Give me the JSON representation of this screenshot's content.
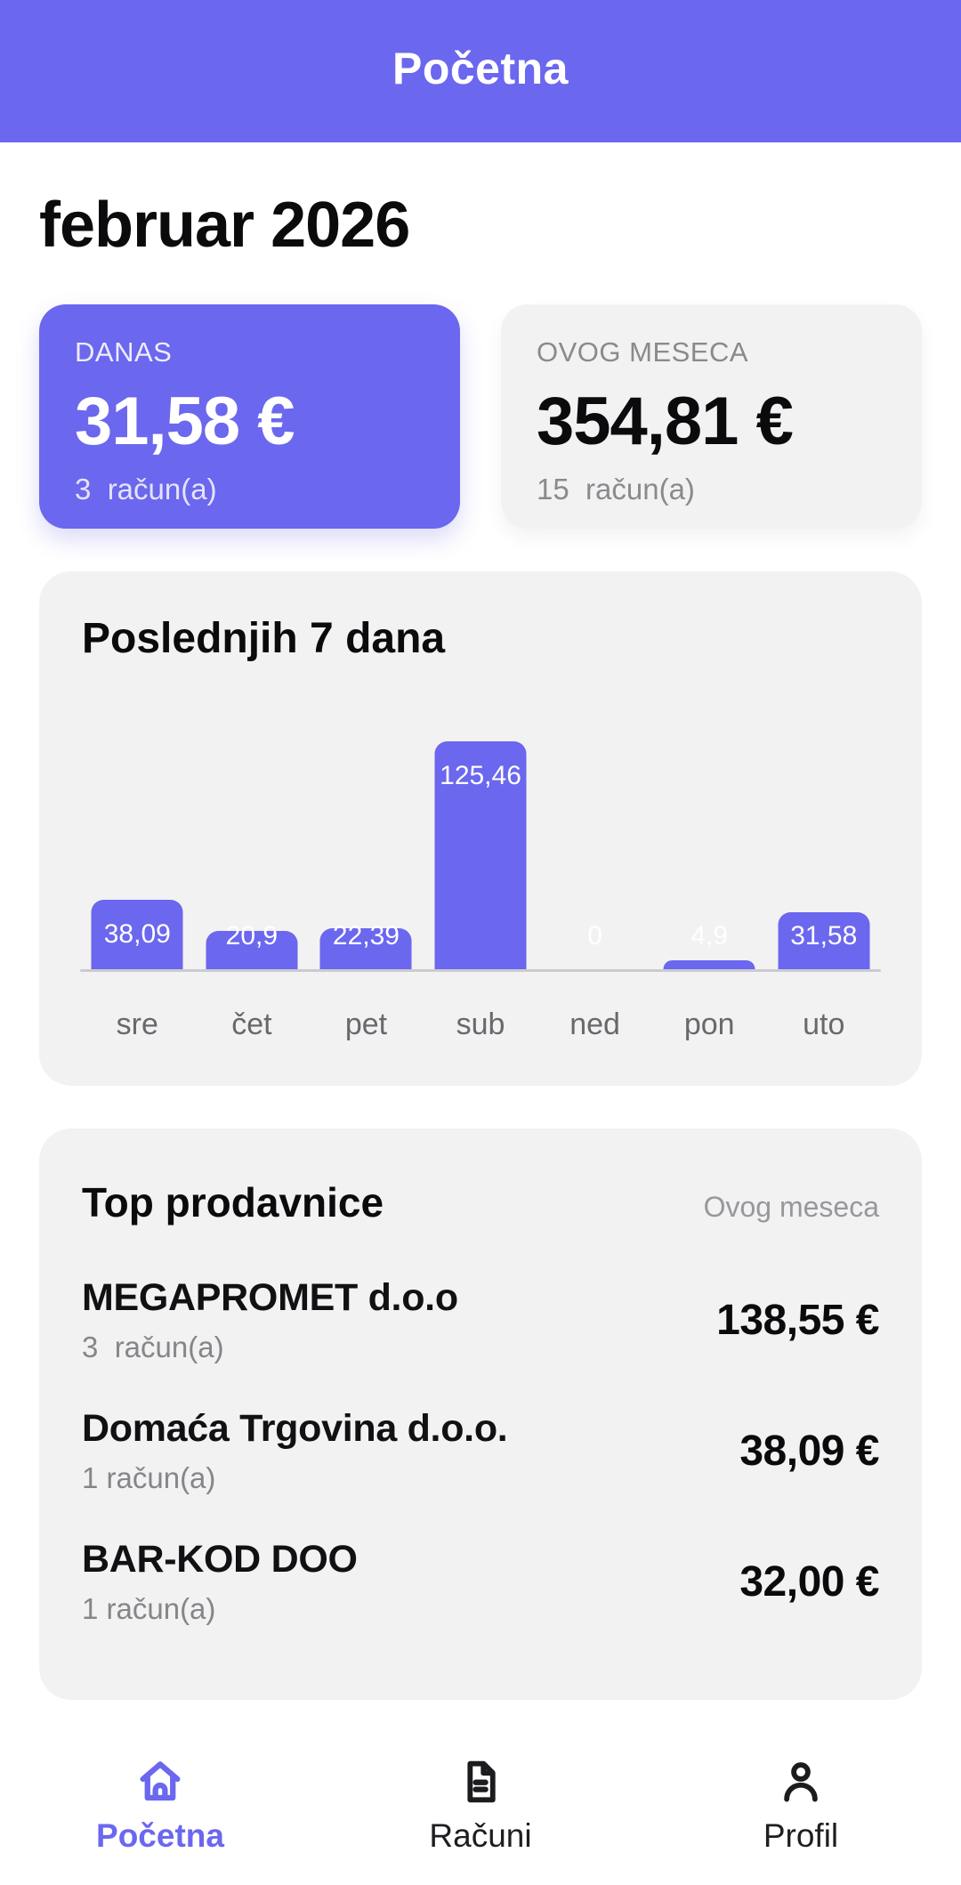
{
  "colors": {
    "primary": "#6b67ee",
    "card_background": "#f2f2f3",
    "text_dark": "#0b0b0d",
    "text_gray": "#8a8a8e",
    "axis_line": "#cbcbcf",
    "bar_value_text": "#ffffff"
  },
  "header": {
    "title": "Početna"
  },
  "month_title": "februar 2026",
  "summary_cards": {
    "today": {
      "label": "DANAS",
      "amount": "31,58 €",
      "count": "3  račun(a)"
    },
    "month": {
      "label": "OVOG MESECA",
      "amount": "354,81 €",
      "count": "15  račun(a)"
    }
  },
  "chart_card": {
    "title": "Poslednjih 7 dana"
  },
  "chart_data": {
    "type": "bar",
    "title": "Poslednjih 7 dana",
    "categories": [
      "sre",
      "čet",
      "pet",
      "sub",
      "ned",
      "pon",
      "uto"
    ],
    "values": [
      38.09,
      20.9,
      22.39,
      125.46,
      0,
      4.9,
      31.58
    ],
    "value_labels": [
      "38,09",
      "20,9",
      "22,39",
      "125,46",
      "0",
      "4,9",
      "31,58"
    ],
    "xlabel": "",
    "ylabel": "",
    "ylim": [
      0,
      125.46
    ],
    "grid": false,
    "legend": false,
    "bar_color": "#6b67ee",
    "value_label_color": "#ffffff"
  },
  "top_stores": {
    "title": "Top prodavnice",
    "period_label": "Ovog meseca",
    "items": [
      {
        "name": "MEGAPROMET d.o.o",
        "count": "3  račun(a)",
        "amount": "138,55 €"
      },
      {
        "name": "Domaća Trgovina d.o.o.",
        "count": "1 račun(a)",
        "amount": "38,09 €"
      },
      {
        "name": "BAR-KOD DOO",
        "count": "1 račun(a)",
        "amount": "32,00 €"
      }
    ]
  },
  "tab_bar": {
    "items": [
      {
        "label": "Početna",
        "icon": "home-icon",
        "active": true
      },
      {
        "label": "Računi",
        "icon": "receipt-icon",
        "active": false
      },
      {
        "label": "Profil",
        "icon": "person-icon",
        "active": false
      }
    ]
  }
}
